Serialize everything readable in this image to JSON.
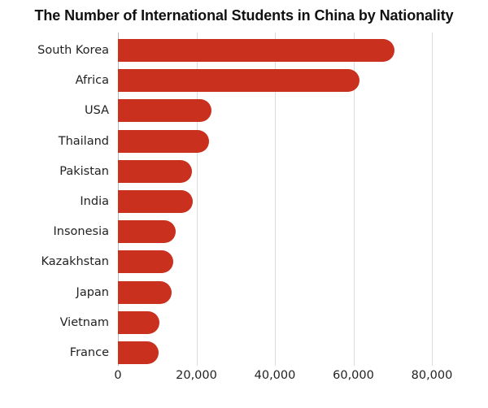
{
  "chart_data": {
    "type": "bar",
    "orientation": "horizontal",
    "title": "The Number of International Students in China by Nationality",
    "xlabel": "",
    "ylabel": "",
    "categories": [
      "South Korea",
      "Africa",
      "USA",
      "Thailand",
      "Pakistan",
      "India",
      "Insonesia",
      "Kazakhstan",
      "Japan",
      "Vietnam",
      "France"
    ],
    "values": [
      70500,
      61500,
      23800,
      23200,
      18900,
      19000,
      14700,
      14100,
      13700,
      10600,
      10400
    ],
    "xlim": [
      0,
      90000
    ],
    "x_ticks": [
      0,
      20000,
      40000,
      60000,
      80000
    ],
    "x_tick_labels": [
      "0",
      "20,000",
      "40,000",
      "60,000",
      "80,000"
    ],
    "grid": "vertical",
    "legend": "none",
    "bar_color": "#c9301e"
  }
}
